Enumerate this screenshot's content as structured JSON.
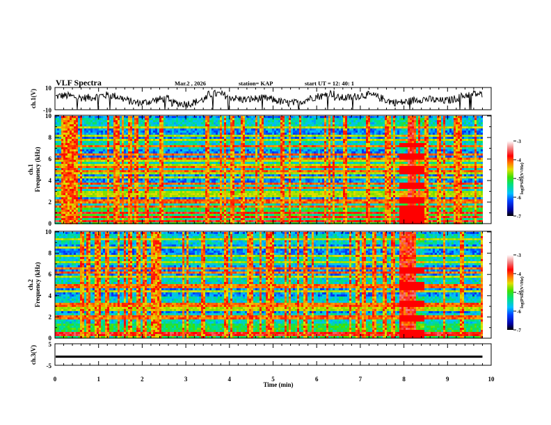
{
  "header": {
    "title": "VLF Spectra",
    "date": "Mar.2  , 2026",
    "station": "station= KAP",
    "start": "start  UT =   12: 40: 1"
  },
  "chart_data": {
    "type": "heatmap",
    "xlabel": "Time  (min)",
    "xlim": [
      0,
      10
    ],
    "x_ticks": [
      "0",
      "1",
      "2",
      "3",
      "4",
      "5",
      "6",
      "7",
      "8",
      "9",
      "10"
    ],
    "data_end_min": 9.8,
    "panels": [
      {
        "name": "ch1-waveform",
        "type": "line",
        "ylabel": "ch.1(V)",
        "ylim": [
          -10,
          10
        ],
        "y_ticks": [
          "10",
          "-10"
        ]
      },
      {
        "name": "ch1-spectrogram",
        "type": "heatmap",
        "ylabel_line1": "ch.1",
        "ylabel_line2": "Frequency  (kHz)",
        "ylim": [
          0,
          10
        ],
        "y_ticks": [
          "0",
          "2",
          "4",
          "6",
          "8",
          "10"
        ],
        "colorbar": {
          "label": "log(PSD)(V²/Hz)",
          "range": [
            -7,
            -3
          ],
          "ticks": [
            "-3",
            "-4",
            "-5",
            "-6",
            "-7"
          ]
        },
        "strong_bands_khz": [
          0.3,
          0.7,
          1.1,
          1.6,
          2.1,
          2.3,
          3.5,
          3.8,
          4.9,
          5.3,
          6.2,
          6.5,
          7.3
        ],
        "weak_bands_khz": [
          2.6,
          2.9,
          3.1,
          4.1,
          4.4,
          4.7,
          5.6,
          5.9,
          6.0,
          7.8,
          8.2,
          9.0,
          9.5
        ],
        "burst_interval_min": [
          7.85,
          8.45
        ]
      },
      {
        "name": "ch2-spectrogram",
        "type": "heatmap",
        "ylabel_line1": "ch.2",
        "ylabel_line2": "Frequency  (kHz)",
        "ylim": [
          0,
          10
        ],
        "y_ticks": [
          "0",
          "2",
          "4",
          "6",
          "8",
          "10"
        ],
        "colorbar": {
          "label": "log(PSD)(V²/Hz)",
          "range": [
            -7,
            -3
          ],
          "ticks": [
            "-3",
            "-4",
            "-5",
            "-6",
            "-7"
          ]
        },
        "strong_bands_khz": [
          0.3,
          0.6,
          1.9,
          2.1,
          3.2,
          3.4,
          4.9,
          5.1,
          6.3,
          6.6
        ],
        "weak_bands_khz": [
          2.8,
          3.0,
          4.2,
          4.5,
          5.6,
          5.9,
          7.2,
          7.8,
          8.6,
          9.4
        ],
        "burst_interval_min": [
          7.85,
          8.45
        ]
      },
      {
        "name": "ch3-waveform",
        "type": "line",
        "ylabel": "ch.3(V)",
        "ylim": [
          -5,
          5
        ],
        "y_ticks": [
          "5",
          "-5"
        ],
        "level_v": [
          -1.5,
          -0.5
        ]
      }
    ]
  },
  "colors": {
    "frame": "#000000",
    "trace": "#000000"
  }
}
